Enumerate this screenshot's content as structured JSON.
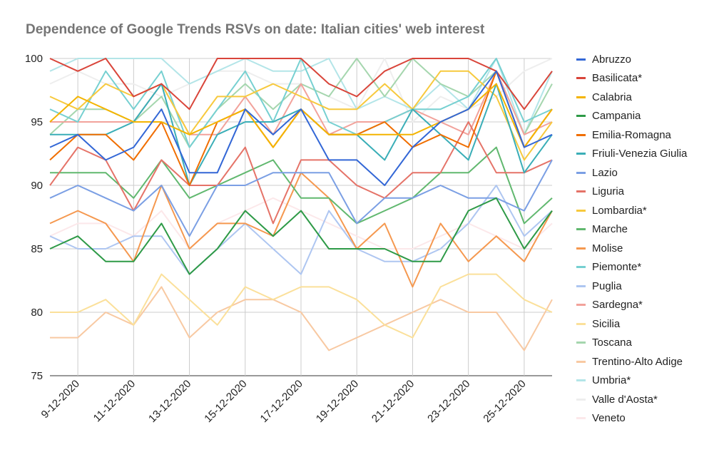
{
  "chart_data": {
    "type": "line",
    "title": "Dependence of Google Trends RSVs on date: Italian cities' web interest",
    "xlabel": "",
    "ylabel": "",
    "ylim": [
      75,
      100
    ],
    "y_ticks": [
      "75",
      "80",
      "85",
      "90",
      "95",
      "100"
    ],
    "x": [
      "8-12-2020",
      "9-12-2020",
      "10-12-2020",
      "11-12-2020",
      "12-12-2020",
      "13-12-2020",
      "14-12-2020",
      "15-12-2020",
      "16-12-2020",
      "17-12-2020",
      "18-12-2020",
      "19-12-2020",
      "20-12-2020",
      "21-12-2020",
      "22-12-2020",
      "23-12-2020",
      "24-12-2020",
      "25-12-2020",
      "26-12-2020"
    ],
    "x_tick_labels": [
      "9-12-2020",
      "11-12-2020",
      "13-12-2020",
      "15-12-2020",
      "17-12-2020",
      "19-12-2020",
      "21-12-2020",
      "23-12-2020",
      "25-12-2020"
    ],
    "grid": true,
    "legend_position": "right",
    "series": [
      {
        "name": "Abruzzo",
        "color": "#3367d6",
        "values": [
          93,
          94,
          92,
          93,
          96,
          91,
          91,
          96,
          94,
          96,
          92,
          92,
          90,
          93,
          95,
          96,
          99,
          93,
          94
        ]
      },
      {
        "name": "Basilicata*",
        "color": "#d9453a",
        "values": [
          100,
          99,
          100,
          97,
          98,
          96,
          100,
          100,
          100,
          100,
          98,
          97,
          99,
          100,
          100,
          100,
          99,
          96,
          99
        ]
      },
      {
        "name": "Calabria",
        "color": "#f4b400",
        "values": [
          95,
          97,
          96,
          95,
          95,
          94,
          95,
          96,
          93,
          96,
          94,
          94,
          94,
          94,
          95,
          96,
          98,
          93,
          96
        ]
      },
      {
        "name": "Campania",
        "color": "#2e9a47",
        "values": [
          85,
          86,
          84,
          84,
          87,
          83,
          85,
          88,
          86,
          88,
          85,
          85,
          85,
          84,
          84,
          88,
          89,
          85,
          88
        ]
      },
      {
        "name": "Emilia-Romagna",
        "color": "#f06e00",
        "values": [
          92,
          94,
          94,
          92,
          95,
          90,
          95,
          96,
          93,
          96,
          94,
          94,
          95,
          93,
          94,
          93,
          99,
          93,
          96
        ]
      },
      {
        "name": "Friuli-Venezia Giulia",
        "color": "#3aaeb7",
        "values": [
          94,
          94,
          94,
          95,
          98,
          90,
          94,
          95,
          95,
          96,
          94,
          94,
          92,
          96,
          94,
          92,
          98,
          91,
          94
        ]
      },
      {
        "name": "Lazio",
        "color": "#7b9fe4",
        "values": [
          89,
          90,
          89,
          88,
          90,
          86,
          90,
          90,
          91,
          91,
          91,
          87,
          89,
          89,
          90,
          89,
          89,
          88,
          92
        ]
      },
      {
        "name": "Liguria",
        "color": "#e57368",
        "values": [
          90,
          93,
          92,
          88,
          92,
          90,
          90,
          93,
          87,
          92,
          92,
          90,
          89,
          91,
          91,
          95,
          91,
          91,
          92
        ]
      },
      {
        "name": "Lombardia*",
        "color": "#f7c93d",
        "values": [
          97,
          96,
          98,
          97,
          98,
          94,
          97,
          97,
          98,
          97,
          96,
          96,
          98,
          96,
          99,
          99,
          97,
          92,
          95
        ]
      },
      {
        "name": "Marche",
        "color": "#61b86f",
        "values": [
          91,
          91,
          91,
          89,
          92,
          89,
          90,
          91,
          92,
          89,
          89,
          87,
          88,
          89,
          91,
          91,
          93,
          87,
          89
        ]
      },
      {
        "name": "Molise",
        "color": "#f5984f",
        "values": [
          87,
          88,
          87,
          84,
          90,
          85,
          87,
          87,
          86,
          91,
          89,
          85,
          87,
          82,
          87,
          84,
          86,
          84,
          88
        ]
      },
      {
        "name": "Piemonte*",
        "color": "#76d0d1",
        "values": [
          96,
          95,
          99,
          96,
          99,
          93,
          96,
          99,
          95,
          100,
          95,
          94,
          95,
          96,
          96,
          97,
          100,
          95,
          96
        ]
      },
      {
        "name": "Puglia",
        "color": "#aec6f1",
        "values": [
          86,
          85,
          85,
          86,
          86,
          83,
          85,
          87,
          85,
          83,
          88,
          85,
          84,
          84,
          85,
          87,
          90,
          86,
          88
        ]
      },
      {
        "name": "Sardegna*",
        "color": "#f2a29b",
        "values": [
          95,
          95,
          95,
          95,
          98,
          94,
          94,
          97,
          94,
          98,
          94,
          95,
          95,
          96,
          95,
          94,
          99,
          94,
          95
        ]
      },
      {
        "name": "Sicilia",
        "color": "#fbe09a",
        "values": [
          80,
          80,
          81,
          79,
          83,
          81,
          79,
          82,
          81,
          82,
          82,
          81,
          79,
          78,
          82,
          83,
          83,
          81,
          80
        ]
      },
      {
        "name": "Toscana",
        "color": "#a5d6ae",
        "values": [
          94,
          96,
          96,
          95,
          97,
          93,
          96,
          98,
          96,
          98,
          97,
          100,
          97,
          100,
          98,
          97,
          99,
          94,
          98
        ]
      },
      {
        "name": "Trentino-Alto Adige",
        "color": "#f8c9a2",
        "values": [
          78,
          78,
          80,
          79,
          82,
          78,
          80,
          81,
          81,
          80,
          77,
          78,
          79,
          80,
          81,
          80,
          80,
          77,
          81
        ]
      },
      {
        "name": "Umbria*",
        "color": "#b3e5e8",
        "values": [
          99,
          100,
          100,
          100,
          100,
          98,
          99,
          100,
          99,
          99,
          100,
          96,
          97,
          96,
          98,
          96,
          100,
          94,
          99
        ]
      },
      {
        "name": "Valle d'Aosta*",
        "color": "#eeeeee",
        "values": [
          98,
          99,
          98,
          98,
          97,
          98,
          99,
          99,
          98,
          98,
          97,
          96,
          100,
          95,
          97,
          96,
          97,
          99,
          100
        ]
      },
      {
        "name": "Veneto",
        "color": "#fce8ea",
        "values": [
          86,
          87,
          87,
          86,
          88,
          85,
          87,
          88,
          89,
          88,
          87,
          86,
          85,
          85,
          86,
          87,
          86,
          85,
          87
        ]
      }
    ]
  }
}
